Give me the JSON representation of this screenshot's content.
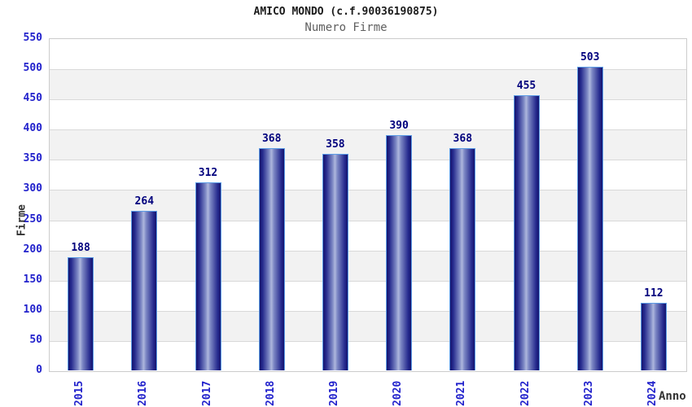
{
  "header": {
    "title": "AMICO MONDO (c.f.90036190875)",
    "subtitle": "Numero Firme"
  },
  "chart_data": {
    "type": "bar",
    "title": "AMICO MONDO (c.f.90036190875)",
    "subtitle": "Numero Firme",
    "categories": [
      "2015",
      "2016",
      "2017",
      "2018",
      "2019",
      "2020",
      "2021",
      "2022",
      "2023",
      "2024"
    ],
    "values": [
      188,
      264,
      312,
      368,
      358,
      390,
      368,
      455,
      503,
      112
    ],
    "xlabel": "Anno",
    "ylabel": "Firme",
    "ylim": [
      0,
      550
    ],
    "ytick_step": 50,
    "yticks": [
      0,
      50,
      100,
      150,
      200,
      250,
      300,
      350,
      400,
      450,
      500,
      550
    ],
    "grid": true,
    "legend_position": "none",
    "bar_labels_shown": true
  },
  "colors": {
    "title": "#1c1c1c",
    "subtitle": "#5f5f5f",
    "tick_label": "#2222cc",
    "value_label": "#00007d",
    "axis_label": "#333333",
    "gridline": "#d9d9d9",
    "band_alt": "#f2f2f2",
    "band_main": "#ffffff",
    "plot_border": "#cccccc",
    "bar_dark": "#14146e",
    "bar_mid": "#262a8e",
    "bar_light": "#aeb7dd",
    "bar_border": "#5c9ce6"
  }
}
